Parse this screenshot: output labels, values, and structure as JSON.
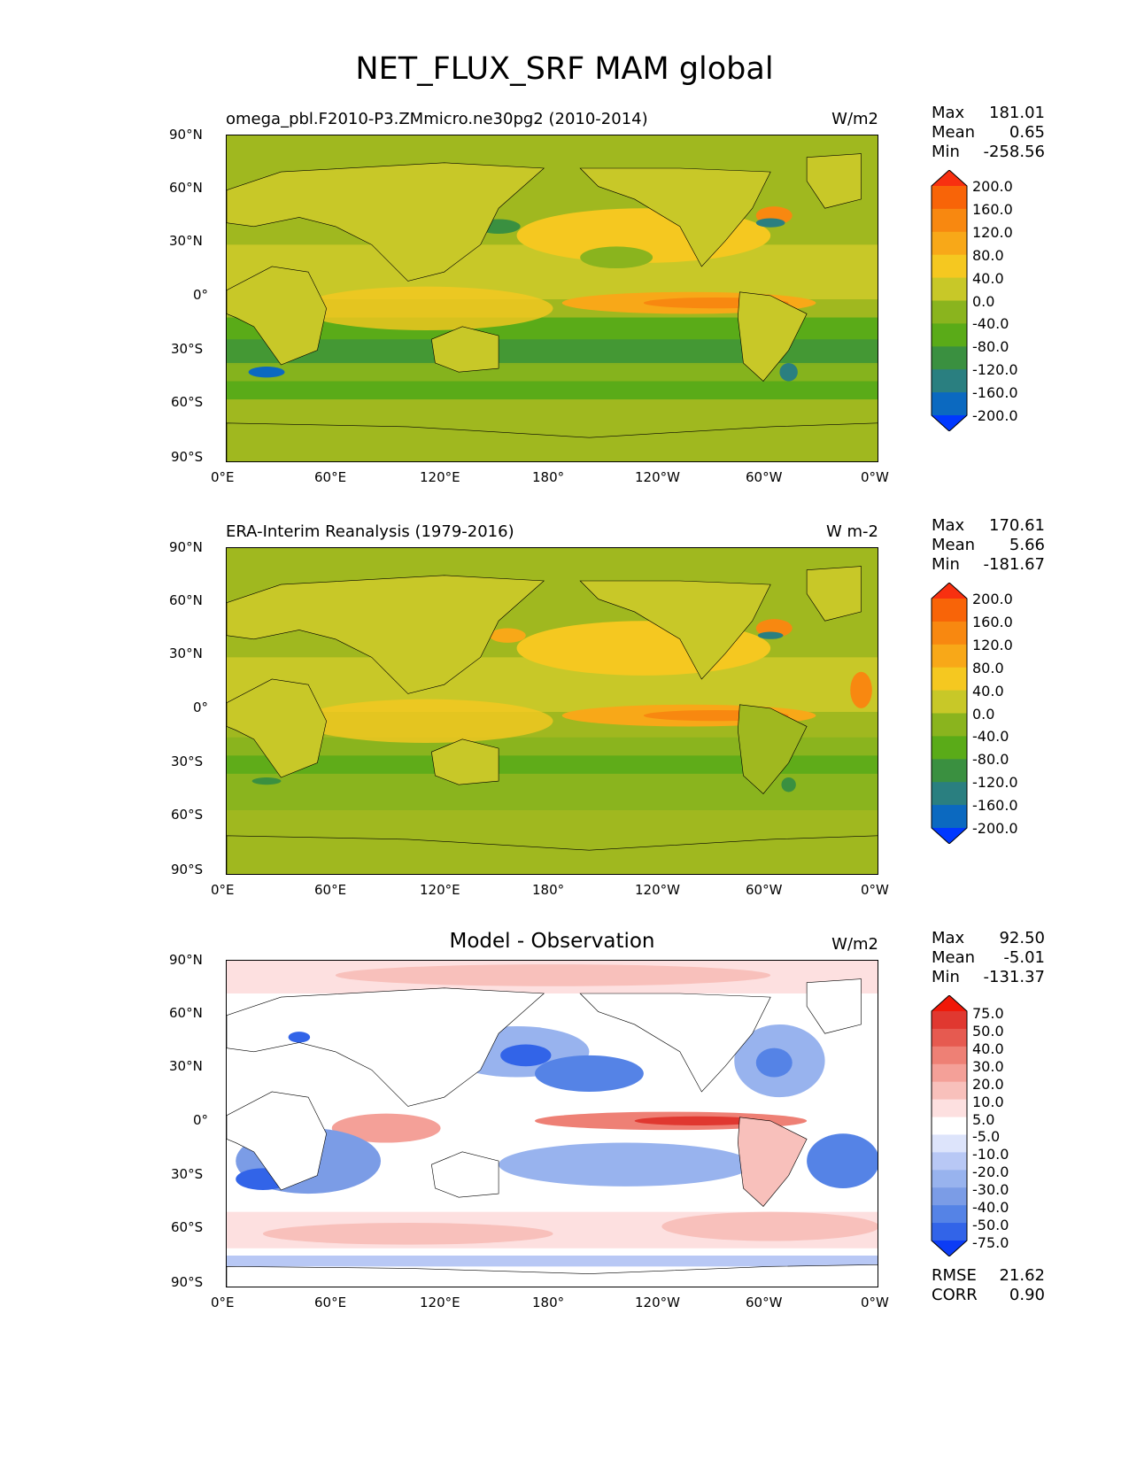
{
  "title": "NET_FLUX_SRF MAM global",
  "lat_ticks": [
    "90°N",
    "60°N",
    "30°N",
    "0°",
    "30°S",
    "60°S",
    "90°S"
  ],
  "lon_ticks": [
    "0°E",
    "60°E",
    "120°E",
    "180°",
    "120°W",
    "60°W",
    "0°W"
  ],
  "colors": {
    "abs_levels": [
      "#0038ff",
      "#0b69c0",
      "#2a7f80",
      "#3a9040",
      "#5aab18",
      "#8ab41e",
      "#c8c828",
      "#f5c820",
      "#f8a818",
      "#f88810",
      "#f86408",
      "#f83010"
    ],
    "diff_levels": [
      "#0c3cf5",
      "#3264e8",
      "#5583e6",
      "#7b9ce6",
      "#98b3ee",
      "#b8c8f5",
      "#dde4fb",
      "#ffffff",
      "#fde0e0",
      "#f8c0bb",
      "#f4a098",
      "#ee8075",
      "#e65a50",
      "#e03830",
      "#f01808"
    ]
  },
  "panels": [
    {
      "name": "model",
      "title": "omega_pbl.F2010-P3.ZMmicro.ne30pg2 (2010-2014)",
      "units": "W/m2",
      "stats": {
        "max_label": "Max",
        "max": "181.01",
        "mean_label": "Mean",
        "mean": "0.65",
        "min_label": "Min",
        "min": "-258.56"
      },
      "colorbar": {
        "labels": [
          "200.0",
          "160.0",
          "120.0",
          "80.0",
          "40.0",
          "0.0",
          "-40.0",
          "-80.0",
          "-120.0",
          "-160.0",
          "-200.0"
        ]
      }
    },
    {
      "name": "obs",
      "title": "ERA-Interim Reanalysis (1979-2016)",
      "units": "W m-2",
      "stats": {
        "max_label": "Max",
        "max": "170.61",
        "mean_label": "Mean",
        "mean": "5.66",
        "min_label": "Min",
        "min": "-181.67"
      },
      "colorbar": {
        "labels": [
          "200.0",
          "160.0",
          "120.0",
          "80.0",
          "40.0",
          "0.0",
          "-40.0",
          "-80.0",
          "-120.0",
          "-160.0",
          "-200.0"
        ]
      }
    },
    {
      "name": "diff",
      "title": "Model - Observation",
      "units": "W/m2",
      "stats": {
        "max_label": "Max",
        "max": "92.50",
        "mean_label": "Mean",
        "mean": "-5.01",
        "min_label": "Min",
        "min": "-131.37"
      },
      "colorbar": {
        "labels": [
          "75.0",
          "50.0",
          "40.0",
          "30.0",
          "20.0",
          "10.0",
          "5.0",
          "-5.0",
          "-10.0",
          "-20.0",
          "-30.0",
          "-40.0",
          "-50.0",
          "-75.0"
        ]
      },
      "metrics": {
        "rmse_label": "RMSE",
        "rmse": "21.62",
        "corr_label": "CORR",
        "corr": "0.90"
      }
    }
  ]
}
